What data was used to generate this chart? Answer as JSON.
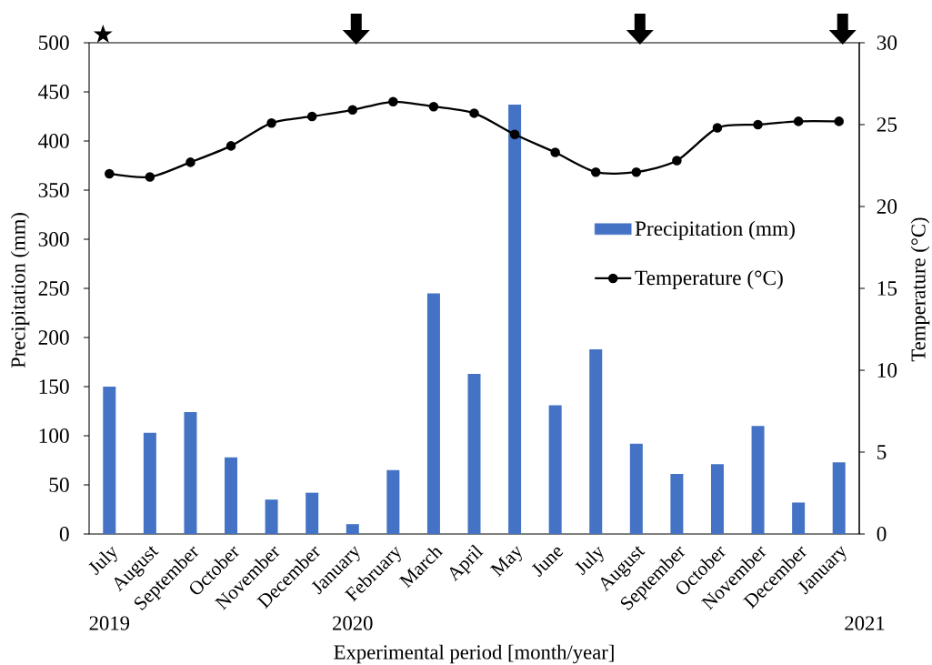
{
  "chart_data": {
    "type": "bar",
    "xlabel": "Experimental period [month/year]",
    "ylabel": "Precipitation (mm)",
    "y2label": "Temperature (°C)",
    "categories": [
      "July",
      "August",
      "September",
      "October",
      "November",
      "December",
      "January",
      "February",
      "March",
      "April",
      "May",
      "June",
      "July",
      "August",
      "September",
      "October",
      "November",
      "December",
      "January"
    ],
    "series": [
      {
        "name": "Precipitation (mm)",
        "color": "#4472c4",
        "values": [
          150,
          103,
          124,
          78,
          35,
          42,
          10,
          65,
          245,
          163,
          437,
          131,
          188,
          92,
          61,
          71,
          110,
          32,
          73
        ]
      },
      {
        "name": "Temperature (°C)",
        "type": "line",
        "axis": "y2",
        "color": "#000000",
        "marker": "circle",
        "line_style": "solid",
        "values": [
          22.0,
          21.8,
          22.7,
          23.7,
          25.1,
          25.5,
          25.9,
          26.4,
          26.1,
          25.7,
          24.4,
          23.3,
          22.1,
          22.1,
          22.8,
          24.8,
          25.0,
          25.2,
          25.2
        ]
      }
    ],
    "ylim": [
      0,
      500
    ],
    "yticks": [
      0,
      50,
      100,
      150,
      200,
      250,
      300,
      350,
      400,
      450,
      500
    ],
    "y2lim": [
      0,
      30
    ],
    "y2ticks": [
      0,
      5,
      10,
      15,
      20,
      25,
      30
    ],
    "legend": "right",
    "annotations": [
      "2019",
      "2020",
      "2021"
    ]
  }
}
